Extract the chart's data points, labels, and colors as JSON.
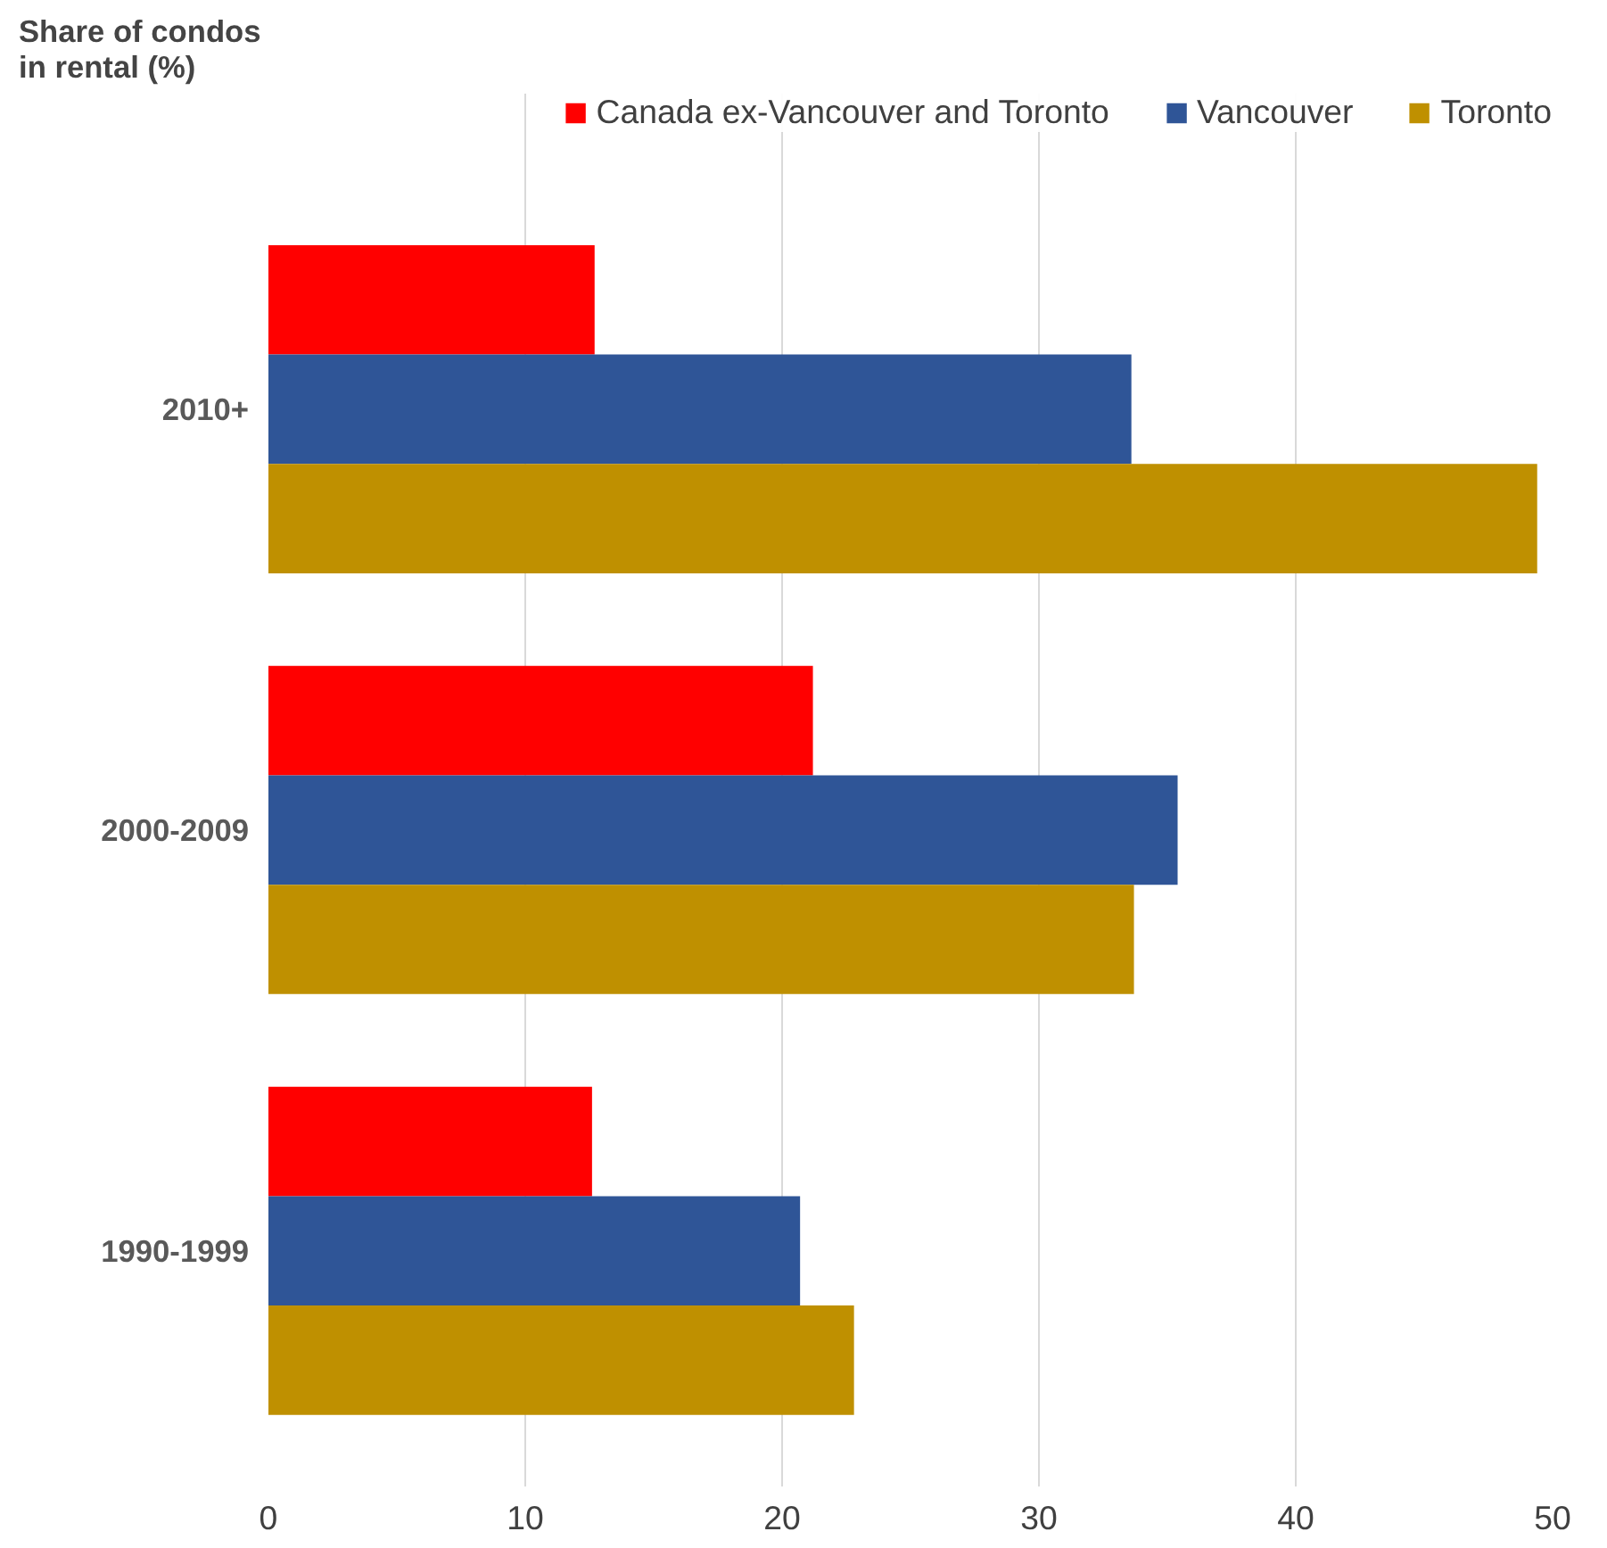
{
  "chart_data": {
    "type": "bar",
    "orientation": "horizontal",
    "title": "Share of condos\nin rental (%)",
    "categories": [
      "2010+",
      "2000-2009",
      "1990-1999"
    ],
    "series": [
      {
        "name": "Canada ex-Vancouver and Toronto",
        "color": "#ff0000",
        "values": [
          12.7,
          21.2,
          12.6
        ]
      },
      {
        "name": "Vancouver",
        "color": "#2f5597",
        "values": [
          33.6,
          35.4,
          20.7
        ]
      },
      {
        "name": "Toronto",
        "color": "#bf9000",
        "values": [
          49.4,
          33.7,
          22.8
        ]
      }
    ],
    "xlim": [
      0,
      50
    ],
    "xticks": [
      0,
      10,
      20,
      30,
      40,
      50
    ],
    "grid": "x",
    "legend": "top"
  }
}
